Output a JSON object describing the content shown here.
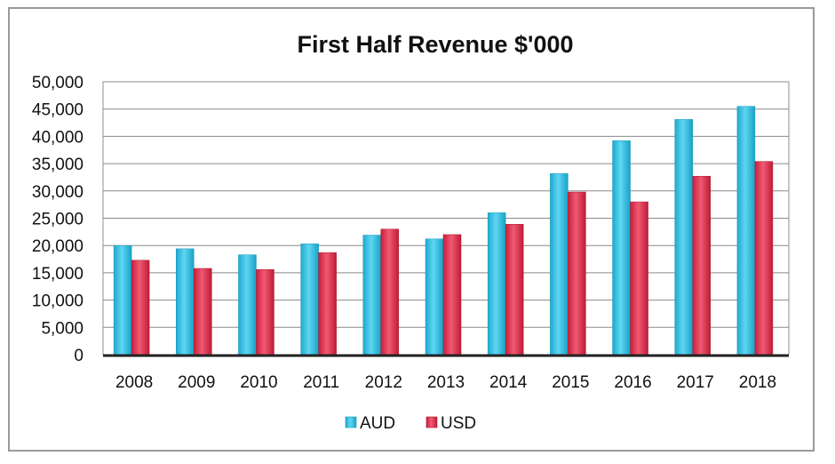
{
  "chart_data": {
    "type": "bar",
    "title": "First Half Revenue $'000",
    "xlabel": "",
    "ylabel": "",
    "categories": [
      "2008",
      "2009",
      "2010",
      "2011",
      "2012",
      "2013",
      "2014",
      "2015",
      "2016",
      "2017",
      "2018"
    ],
    "series": [
      {
        "name": "AUD",
        "color": "#33c3e6",
        "values": [
          20000,
          19400,
          18300,
          20300,
          21900,
          21200,
          26000,
          33200,
          39200,
          43100,
          45500
        ]
      },
      {
        "name": "USD",
        "color": "#e0344f",
        "values": [
          17300,
          15800,
          15600,
          18700,
          23000,
          22000,
          23900,
          29800,
          28000,
          32700,
          35400
        ]
      }
    ],
    "ylim": [
      0,
      50000
    ],
    "yticks": [
      "0",
      "5,000",
      "10,000",
      "15,000",
      "20,000",
      "25,000",
      "30,000",
      "35,000",
      "40,000",
      "45,000",
      "50,000"
    ],
    "grid": true,
    "legend_position": "bottom"
  }
}
